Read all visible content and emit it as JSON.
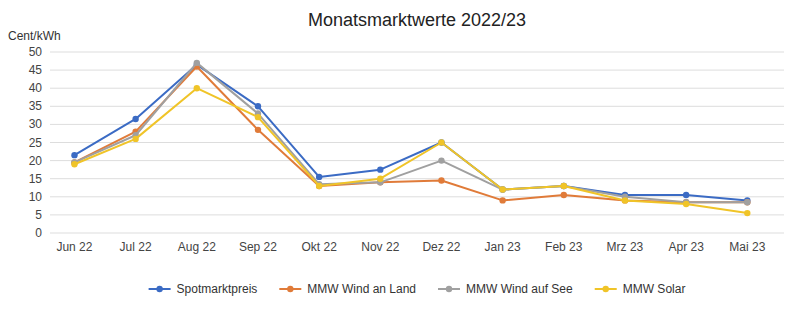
{
  "chart_data": {
    "type": "line",
    "title": "Monatsmarktwerte 2022/23",
    "ylabel": "Cent/kWh",
    "categories": [
      "Jun 22",
      "Jul 22",
      "Aug 22",
      "Sep 22",
      "Okt 22",
      "Nov 22",
      "Dez 22",
      "Jan 23",
      "Feb 23",
      "Mrz 23",
      "Apr 23",
      "Mai 23"
    ],
    "series": [
      {
        "name": "Spotmarktpreis",
        "color": "#3B6BC4",
        "marker": "circle",
        "values": [
          21.5,
          31.5,
          46.5,
          35.0,
          15.5,
          17.5,
          25.0,
          12.0,
          13.0,
          10.5,
          10.5,
          9.0
        ]
      },
      {
        "name": "MMW Wind an Land",
        "color": "#E07B39",
        "marker": "circle",
        "values": [
          19.5,
          28.0,
          46.0,
          28.5,
          13.0,
          14.0,
          14.5,
          9.0,
          10.5,
          9.0,
          8.5,
          8.5
        ]
      },
      {
        "name": "MMW Wind auf See",
        "color": "#A0A0A0",
        "marker": "circle",
        "values": [
          19.5,
          27.0,
          47.0,
          33.0,
          13.5,
          14.0,
          20.0,
          12.0,
          13.0,
          10.0,
          8.5,
          8.5
        ]
      },
      {
        "name": "MMW Solar",
        "color": "#F0C428",
        "marker": "circle",
        "values": [
          19.0,
          26.0,
          40.0,
          32.0,
          13.0,
          15.0,
          25.0,
          12.0,
          13.0,
          9.0,
          8.0,
          5.5
        ]
      }
    ],
    "ylim": [
      0,
      50
    ],
    "yticks": [
      0,
      5,
      10,
      15,
      20,
      25,
      30,
      35,
      40,
      45,
      50
    ],
    "grid": true,
    "legend": "bottom"
  }
}
